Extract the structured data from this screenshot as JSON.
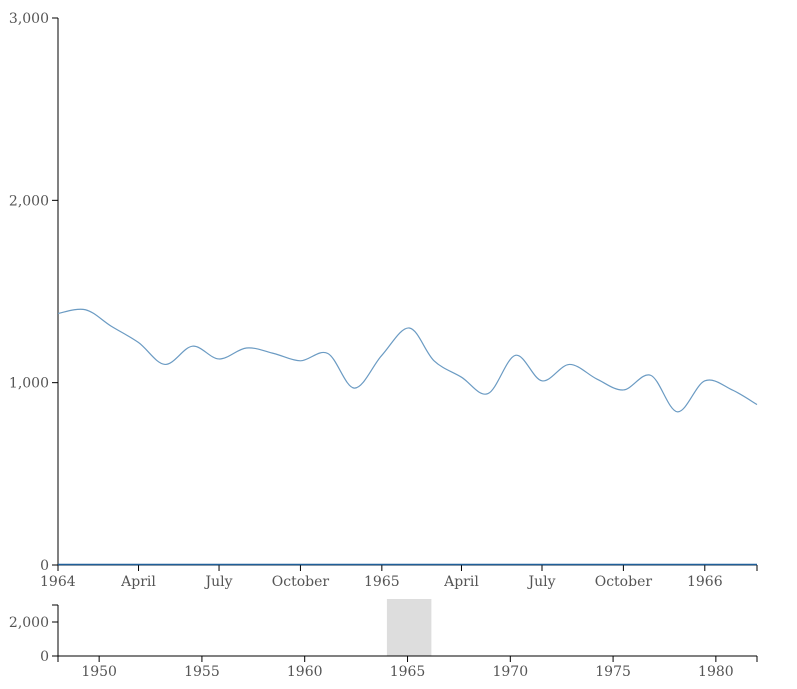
{
  "chart_data": [
    {
      "type": "line",
      "title": "",
      "xlabel": "",
      "ylabel": "",
      "grid": false,
      "xlim": [
        "1964-01-01",
        "1966-03-01"
      ],
      "ylim": [
        0,
        3000
      ],
      "y_ticks": [
        0,
        1000,
        2000,
        3000
      ],
      "y_tick_labels": [
        "0",
        "1,000",
        "2,000",
        "3,000"
      ],
      "x_ticks": [
        "1964-01-01",
        "1964-04-01",
        "1964-07-01",
        "1964-10-01",
        "1965-01-01",
        "1965-04-01",
        "1965-07-01",
        "1965-10-01",
        "1966-01-01"
      ],
      "x_tick_labels": [
        "1964",
        "April",
        "July",
        "October",
        "1965",
        "April",
        "July",
        "October",
        "1966"
      ],
      "series": [
        {
          "color": "#6b9bc3",
          "x": [
            "1964-01-01",
            "1964-02-01",
            "1964-03-01",
            "1964-04-01",
            "1964-05-01",
            "1964-06-01",
            "1964-07-01",
            "1964-08-01",
            "1964-09-01",
            "1964-10-01",
            "1964-11-01",
            "1964-12-01",
            "1965-01-01",
            "1965-02-01",
            "1965-03-01",
            "1965-04-01",
            "1965-05-01",
            "1965-06-01",
            "1965-07-01",
            "1965-08-01",
            "1965-09-01",
            "1965-10-01",
            "1965-11-01",
            "1965-12-01",
            "1966-01-01",
            "1966-02-01",
            "1966-03-01"
          ],
          "y": [
            1380,
            1400,
            1310,
            1220,
            1100,
            1200,
            1130,
            1190,
            1160,
            1120,
            1160,
            970,
            1150,
            1300,
            1120,
            1030,
            940,
            1150,
            1010,
            1100,
            1020,
            960,
            1040,
            840,
            1010,
            960,
            880
          ]
        }
      ]
    },
    {
      "type": "area",
      "role": "overview-brush",
      "xlim": [
        "1948-01-01",
        "1982-01-01"
      ],
      "ylim": [
        0,
        3000
      ],
      "y_ticks": [
        0,
        2000
      ],
      "y_tick_labels": [
        "0",
        "2,000"
      ],
      "x_ticks": [
        "1950-01-01",
        "1955-01-01",
        "1960-01-01",
        "1965-01-01",
        "1970-01-01",
        "1975-01-01",
        "1980-01-01"
      ],
      "x_tick_labels": [
        "1950",
        "1955",
        "1960",
        "1965",
        "1970",
        "1975",
        "1980"
      ],
      "brush_range": [
        "1964-01-01",
        "1966-03-01"
      ],
      "brush_color": "#dddddd"
    }
  ]
}
